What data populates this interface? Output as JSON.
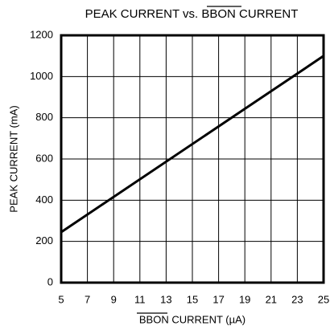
{
  "chart_data": {
    "type": "line",
    "title": "PEAK CURRENT vs. BBON CURRENT",
    "x_label": "BBON CURRENT (µA)",
    "y_label": "PEAK CURRENT (mA)",
    "series": [
      {
        "name": "PEAK CURRENT",
        "color": "#000000",
        "x": [
          5,
          25
        ],
        "values": [
          245,
          1100
        ]
      }
    ],
    "xlim": [
      5,
      25
    ],
    "xticks": [
      5,
      7,
      9,
      11,
      13,
      15,
      17,
      19,
      21,
      23,
      25
    ],
    "ylim": [
      0,
      1200
    ],
    "yticks": [
      0,
      200,
      400,
      600,
      800,
      1000,
      1200
    ],
    "grid": true
  }
}
